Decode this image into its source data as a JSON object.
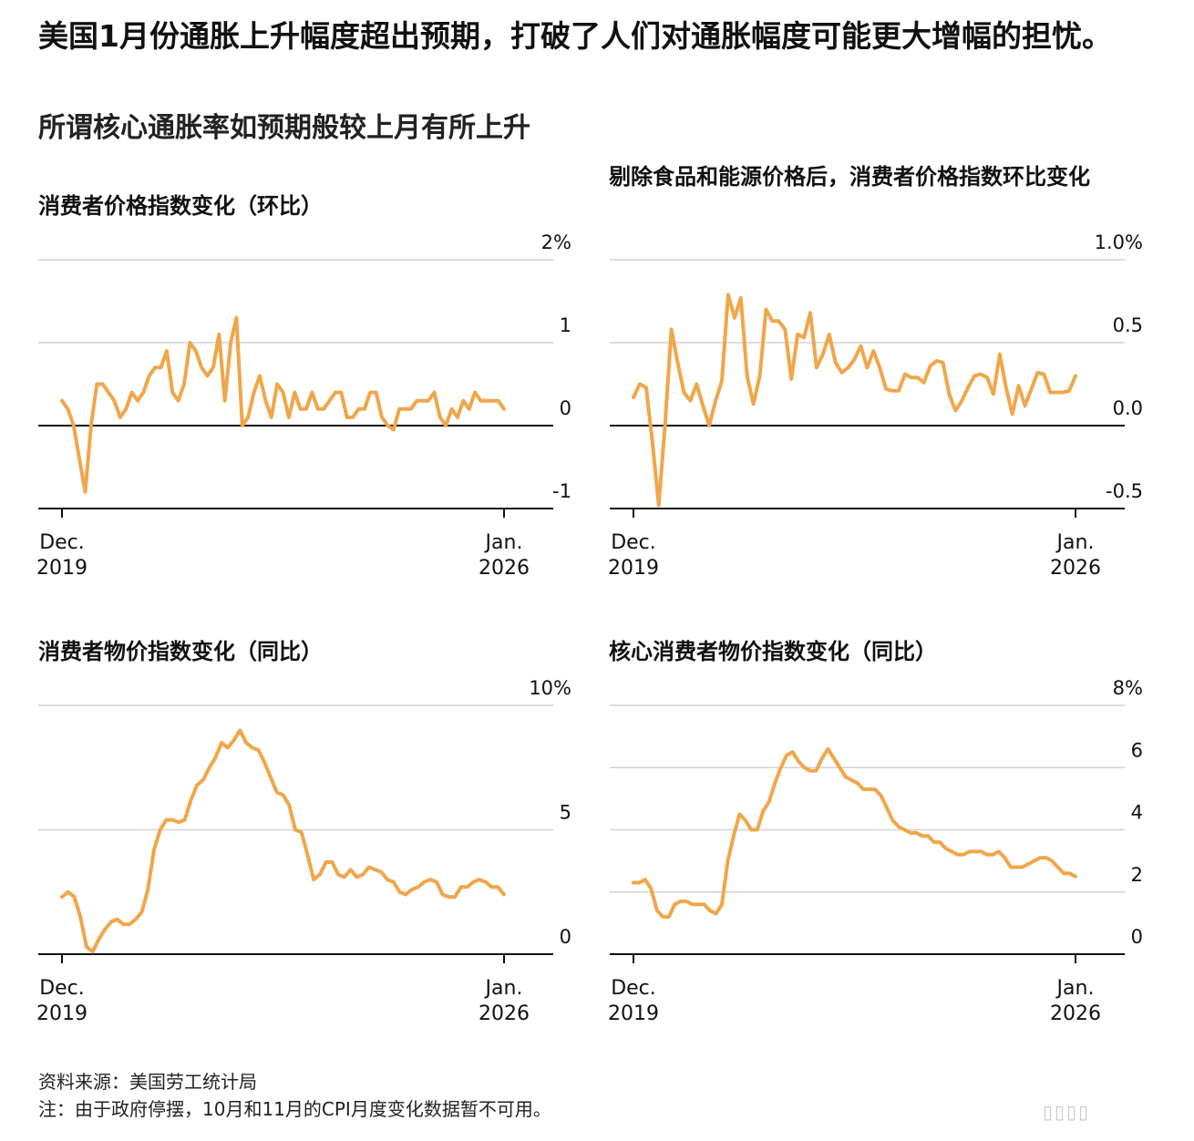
{
  "headline": "美国1月份通胀上升幅度超出预期，打破了人们对通胀幅度可能更大增幅的担忧。",
  "subhead": "所谓核心通胀率如预期般较上月有所上升",
  "source": "资料来源：美国劳工统计局",
  "note": "注：由于政府停摆，10月和11月的CPI月度变化数据暂不可用。",
  "watermark": "▯▯▯▯",
  "colors": {
    "line": "#f0a64a",
    "grid": "#d4d4d4",
    "baseline": "#111111"
  },
  "chart_data": [
    {
      "type": "line",
      "title": "消费者价格指数变化（环比）",
      "ylim": [
        -1,
        2
      ],
      "ytick_labels": [
        "2%",
        "1",
        "0",
        "-1"
      ],
      "yticks": [
        2,
        1,
        0,
        -1
      ],
      "x_start_label": [
        "Dec.",
        "2019"
      ],
      "x_end_label": [
        "Jan.",
        "2026"
      ],
      "values": [
        0.3,
        0.2,
        0.0,
        -0.4,
        -0.8,
        0.0,
        0.5,
        0.5,
        0.4,
        0.3,
        0.1,
        0.2,
        0.4,
        0.3,
        0.4,
        0.6,
        0.7,
        0.7,
        0.9,
        0.4,
        0.3,
        0.5,
        1.0,
        0.9,
        0.7,
        0.6,
        0.7,
        1.1,
        0.3,
        1.0,
        1.3,
        0.0,
        0.1,
        0.4,
        0.6,
        0.3,
        0.1,
        0.5,
        0.4,
        0.1,
        0.4,
        0.2,
        0.2,
        0.4,
        0.2,
        0.2,
        0.3,
        0.4,
        0.4,
        0.1,
        0.1,
        0.2,
        0.2,
        0.4,
        0.4,
        0.1,
        0.0,
        -0.05,
        0.2,
        0.2,
        0.2,
        0.3,
        0.3,
        0.3,
        0.4,
        0.1,
        0.0,
        0.2,
        0.1,
        0.3,
        0.2,
        0.4,
        0.3,
        0.3,
        0.3,
        0.3,
        0.2
      ]
    },
    {
      "type": "line",
      "title": "剔除食品和能源价格后，消费者价格指数环比变化",
      "ylim": [
        -0.5,
        1.0
      ],
      "ytick_labels": [
        "1.0%",
        "0.5",
        "0.0",
        "-0.5"
      ],
      "yticks": [
        1.0,
        0.5,
        0.0,
        -0.5
      ],
      "x_start_label": [
        "Dec.",
        "2019"
      ],
      "x_end_label": [
        "Jan.",
        "2026"
      ],
      "values": [
        0.17,
        0.25,
        0.23,
        -0.1,
        -0.48,
        0.0,
        0.58,
        0.38,
        0.2,
        0.15,
        0.25,
        0.12,
        0.0,
        0.15,
        0.27,
        0.79,
        0.65,
        0.77,
        0.3,
        0.13,
        0.3,
        0.7,
        0.63,
        0.63,
        0.58,
        0.28,
        0.55,
        0.53,
        0.68,
        0.35,
        0.43,
        0.55,
        0.38,
        0.32,
        0.35,
        0.4,
        0.48,
        0.35,
        0.45,
        0.35,
        0.22,
        0.21,
        0.21,
        0.31,
        0.29,
        0.29,
        0.26,
        0.36,
        0.39,
        0.38,
        0.19,
        0.09,
        0.15,
        0.23,
        0.3,
        0.31,
        0.29,
        0.19,
        0.43,
        0.23,
        0.07,
        0.24,
        0.12,
        0.22,
        0.32,
        0.31,
        0.2,
        0.2,
        0.2,
        0.21,
        0.3
      ]
    },
    {
      "type": "line",
      "title": "消费者物价指数变化（同比）",
      "ylim": [
        0,
        10
      ],
      "ytick_labels": [
        "10%",
        "5",
        "0"
      ],
      "yticks": [
        10,
        5,
        0
      ],
      "x_start_label": [
        "Dec.",
        "2019"
      ],
      "x_end_label": [
        "Jan.",
        "2026"
      ],
      "values": [
        2.3,
        2.5,
        2.3,
        1.5,
        0.3,
        0.1,
        0.6,
        1.0,
        1.3,
        1.4,
        1.2,
        1.2,
        1.4,
        1.7,
        2.6,
        4.2,
        5.0,
        5.4,
        5.4,
        5.3,
        5.4,
        6.2,
        6.8,
        7.0,
        7.5,
        7.9,
        8.5,
        8.3,
        8.6,
        9.0,
        8.5,
        8.3,
        8.2,
        7.7,
        7.1,
        6.5,
        6.4,
        6.0,
        5.0,
        4.9,
        4.0,
        3.0,
        3.2,
        3.7,
        3.7,
        3.2,
        3.1,
        3.4,
        3.1,
        3.2,
        3.5,
        3.4,
        3.3,
        3.0,
        2.9,
        2.5,
        2.4,
        2.6,
        2.7,
        2.9,
        3.0,
        2.9,
        2.4,
        2.3,
        2.3,
        2.7,
        2.7,
        2.9,
        3.0,
        2.9,
        2.7,
        2.7,
        2.4
      ]
    },
    {
      "type": "line",
      "title": "核心消费者物价指数变化（同比）",
      "ylim": [
        0,
        8
      ],
      "ytick_labels": [
        "8%",
        "6",
        "4",
        "2",
        "0"
      ],
      "yticks": [
        8,
        6,
        4,
        2,
        0
      ],
      "x_start_label": [
        "Dec.",
        "2019"
      ],
      "x_end_label": [
        "Jan.",
        "2026"
      ],
      "values": [
        2.3,
        2.3,
        2.4,
        2.1,
        1.4,
        1.2,
        1.2,
        1.6,
        1.7,
        1.7,
        1.6,
        1.6,
        1.6,
        1.4,
        1.3,
        1.6,
        3.0,
        3.8,
        4.5,
        4.3,
        4.0,
        4.0,
        4.6,
        4.9,
        5.5,
        6.0,
        6.4,
        6.5,
        6.2,
        6.0,
        5.9,
        5.9,
        6.3,
        6.6,
        6.3,
        6.0,
        5.7,
        5.6,
        5.5,
        5.3,
        5.3,
        5.3,
        5.1,
        4.7,
        4.3,
        4.1,
        4.0,
        3.9,
        3.9,
        3.8,
        3.8,
        3.6,
        3.6,
        3.4,
        3.3,
        3.2,
        3.2,
        3.3,
        3.3,
        3.3,
        3.2,
        3.2,
        3.3,
        3.1,
        2.8,
        2.8,
        2.8,
        2.9,
        3.0,
        3.1,
        3.1,
        3.0,
        2.8,
        2.6,
        2.6,
        2.5
      ]
    }
  ]
}
